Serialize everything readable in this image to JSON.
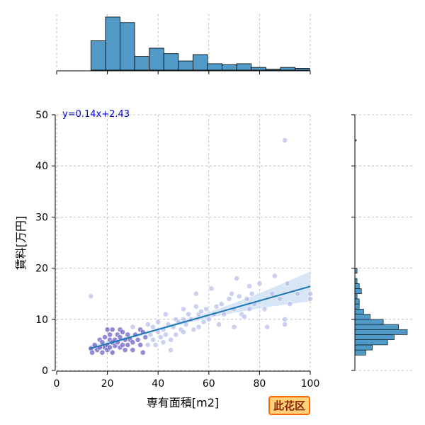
{
  "badge": {
    "label": "此花区"
  },
  "chart_data": {
    "type": "scatter",
    "xlabel": "専有面積[m2]",
    "ylabel": "賃料[万円]",
    "xlim": [
      0,
      100
    ],
    "ylim": [
      0,
      50
    ],
    "xticks": [
      "0",
      "20",
      "40",
      "60",
      "80",
      "100"
    ],
    "yticks": [
      "0",
      "10",
      "20",
      "30",
      "40",
      "50"
    ],
    "grid": true,
    "regression": {
      "label": "y=0.14x+2.43",
      "slope": 0.14,
      "intercept": 2.43,
      "x_range": [
        13,
        100
      ]
    },
    "colors": {
      "points": "#aab0e6",
      "dense_points": "#3a2ab5",
      "line": "#1f77b4",
      "band": "#c6dcf0",
      "hist": "#5199c6",
      "equation": "#0000cc"
    },
    "points": [
      [
        13.5,
        14.5
      ],
      [
        13.5,
        4.3
      ],
      [
        14,
        3.5
      ],
      [
        15,
        5
      ],
      [
        16,
        4
      ],
      [
        17,
        4.5
      ],
      [
        17,
        6
      ],
      [
        18,
        5.5
      ],
      [
        18,
        3.5
      ],
      [
        19,
        4.5
      ],
      [
        19,
        6.5
      ],
      [
        20,
        8
      ],
      [
        20,
        5
      ],
      [
        20,
        4
      ],
      [
        21,
        6
      ],
      [
        21,
        7
      ],
      [
        21,
        4.5
      ],
      [
        22,
        5.5
      ],
      [
        22,
        8
      ],
      [
        22,
        3.5
      ],
      [
        23,
        6
      ],
      [
        23,
        4.8
      ],
      [
        24,
        7
      ],
      [
        24,
        5.5
      ],
      [
        25,
        6.5
      ],
      [
        25,
        4.5
      ],
      [
        25,
        8
      ],
      [
        26,
        5
      ],
      [
        26,
        7.5
      ],
      [
        27,
        6
      ],
      [
        27,
        4
      ],
      [
        28,
        7
      ],
      [
        28,
        5
      ],
      [
        29,
        6
      ],
      [
        30,
        5.5
      ],
      [
        30,
        8.5
      ],
      [
        30,
        4
      ],
      [
        31,
        7
      ],
      [
        32,
        6
      ],
      [
        33,
        5
      ],
      [
        33,
        8
      ],
      [
        34,
        7.5
      ],
      [
        34,
        3.5
      ],
      [
        35,
        6.5
      ],
      [
        36,
        5
      ],
      [
        36,
        9
      ],
      [
        37,
        7
      ],
      [
        38,
        6
      ],
      [
        38,
        8.5
      ],
      [
        39,
        5
      ],
      [
        40,
        7.5
      ],
      [
        40,
        9.5
      ],
      [
        41,
        6.5
      ],
      [
        42,
        8
      ],
      [
        42,
        5.5
      ],
      [
        43,
        11
      ],
      [
        43,
        7
      ],
      [
        44,
        9
      ],
      [
        45,
        6
      ],
      [
        45,
        4
      ],
      [
        46,
        8.5
      ],
      [
        47,
        10
      ],
      [
        47,
        7
      ],
      [
        48,
        9.5
      ],
      [
        49,
        8
      ],
      [
        50,
        12
      ],
      [
        50,
        10
      ],
      [
        50,
        7.5
      ],
      [
        51,
        9
      ],
      [
        52,
        11
      ],
      [
        53,
        10
      ],
      [
        54,
        8
      ],
      [
        55,
        15
      ],
      [
        55,
        12.5
      ],
      [
        56,
        11
      ],
      [
        56,
        8.5
      ],
      [
        57,
        11.5
      ],
      [
        58,
        9.5
      ],
      [
        59,
        12
      ],
      [
        60,
        10
      ],
      [
        61,
        16
      ],
      [
        62,
        11
      ],
      [
        63,
        12.5
      ],
      [
        64,
        9
      ],
      [
        65,
        13
      ],
      [
        66,
        11
      ],
      [
        68,
        14
      ],
      [
        69,
        15
      ],
      [
        70,
        8.5
      ],
      [
        70,
        12
      ],
      [
        71,
        18
      ],
      [
        72,
        14.5
      ],
      [
        73,
        11
      ],
      [
        74,
        10.5
      ],
      [
        75,
        14
      ],
      [
        76,
        12
      ],
      [
        76,
        16.5
      ],
      [
        77,
        15
      ],
      [
        78,
        13
      ],
      [
        80,
        17
      ],
      [
        82,
        12
      ],
      [
        83,
        8.5
      ],
      [
        85,
        15
      ],
      [
        86,
        18.5
      ],
      [
        88,
        14
      ],
      [
        90,
        10
      ],
      [
        90,
        9
      ],
      [
        90,
        45
      ],
      [
        91,
        17
      ],
      [
        92,
        13
      ],
      [
        95,
        15
      ],
      [
        100,
        14
      ],
      [
        100,
        15
      ]
    ],
    "x_hist": {
      "bin_edges": [
        13.5,
        19.25,
        25,
        30.75,
        36.5,
        42.25,
        48,
        53.75,
        59.5,
        65.25,
        71,
        76.75,
        82.5,
        88.25,
        94,
        99.75
      ],
      "counts": [
        32,
        58,
        52,
        15,
        24,
        18,
        10,
        17,
        7,
        6,
        7,
        3,
        1,
        3,
        2
      ]
    },
    "y_hist": {
      "bin_edges": [
        3,
        4,
        5,
        6,
        7,
        8,
        9,
        10,
        11,
        12,
        13,
        14,
        15,
        16,
        17,
        18,
        19,
        20
      ],
      "counts": [
        5,
        8,
        15,
        18,
        24,
        20,
        13,
        7,
        4,
        2,
        2,
        1,
        3,
        2,
        1,
        0,
        1
      ]
    }
  }
}
